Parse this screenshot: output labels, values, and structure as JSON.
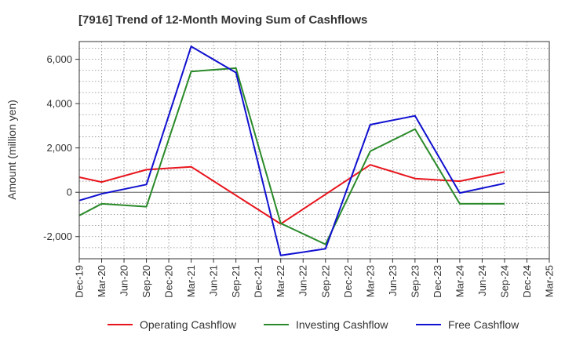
{
  "chart_data": {
    "type": "line",
    "title": "[7916]  Trend of 12-Month Moving Sum of Cashflows",
    "xlabel": "",
    "ylabel": "Amount (million yen)",
    "categories": [
      "Dec-19",
      "Mar-20",
      "Jun-20",
      "Sep-20",
      "Dec-20",
      "Mar-21",
      "Jun-21",
      "Sep-21",
      "Dec-21",
      "Mar-22",
      "Jun-22",
      "Sep-22",
      "Dec-22",
      "Mar-23",
      "Jun-23",
      "Sep-23",
      "Dec-23",
      "Mar-24",
      "Jun-24",
      "Sep-24",
      "Dec-24",
      "Mar-25"
    ],
    "ylim": [
      -3000,
      6800
    ],
    "yticks": [
      -2000,
      0,
      2000,
      4000,
      6000
    ],
    "ytick_labels": [
      "-2,000",
      "0",
      "2,000",
      "4,000",
      "6,000"
    ],
    "grid": true,
    "legend_position": "bottom",
    "series": [
      {
        "name": "Operating Cashflow",
        "color": "#e8141c",
        "values": [
          680,
          460,
          null,
          1020,
          null,
          1150,
          null,
          null,
          null,
          -1430,
          null,
          null,
          null,
          1240,
          null,
          620,
          null,
          500,
          null,
          920,
          null,
          null
        ]
      },
      {
        "name": "Investing Cashflow",
        "color": "#2a8a2a",
        "values": [
          -1050,
          -520,
          null,
          -650,
          null,
          5450,
          null,
          5600,
          null,
          -1400,
          null,
          -2350,
          null,
          1850,
          null,
          2850,
          null,
          -520,
          null,
          -520,
          null,
          null
        ]
      },
      {
        "name": "Free Cashflow",
        "color": "#1010d0",
        "values": [
          -370,
          -70,
          null,
          350,
          null,
          6580,
          null,
          5400,
          null,
          -2850,
          null,
          -2550,
          null,
          3050,
          null,
          3450,
          null,
          -30,
          null,
          400,
          null,
          null
        ]
      }
    ]
  }
}
